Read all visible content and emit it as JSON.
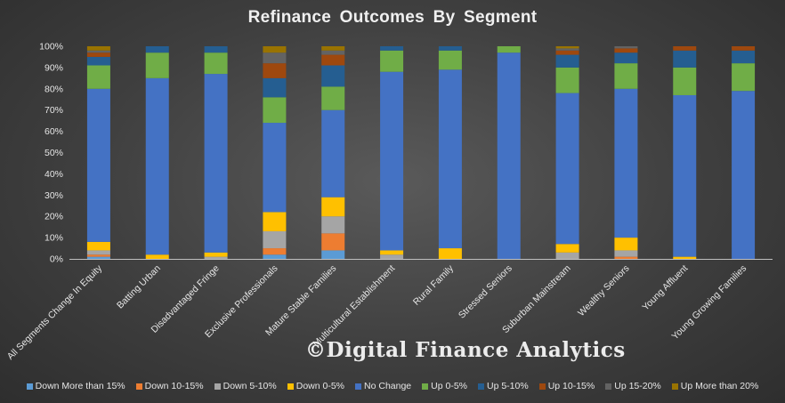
{
  "chart_data": {
    "type": "bar",
    "stacked": true,
    "title": "Refinance Outcomes By Segment",
    "ylim": [
      0,
      100
    ],
    "yticks": [
      "0%",
      "10%",
      "20%",
      "30%",
      "40%",
      "50%",
      "60%",
      "70%",
      "80%",
      "90%",
      "100%"
    ],
    "grid": false,
    "legend_position": "bottom",
    "categories": [
      "All Segments Change In Equity",
      "Batting Urban",
      "Disadvantaged Fringe",
      "Exclusive Professionals",
      "Mature Stable Families",
      "Multicultural Establishment",
      "Rural Family",
      "Stressed Seniors",
      "Suburban Mainstream",
      "Wealthy Seniors",
      "Young Affluent",
      "Young Growing Families"
    ],
    "series": [
      {
        "name": "Down More than 15%",
        "color": "#5b9bd5",
        "values": [
          1,
          0,
          0,
          2,
          4,
          0,
          0,
          0,
          0,
          0,
          0,
          0
        ]
      },
      {
        "name": "Down 10-15%",
        "color": "#ed7d31",
        "values": [
          1,
          0,
          0,
          3,
          8,
          0,
          0,
          0,
          0,
          1,
          0,
          0
        ]
      },
      {
        "name": "Down 5-10%",
        "color": "#a5a5a5",
        "values": [
          2,
          0,
          1,
          8,
          8,
          2,
          0,
          0,
          3,
          3,
          0,
          0
        ]
      },
      {
        "name": "Down 0-5%",
        "color": "#ffc000",
        "values": [
          4,
          2,
          2,
          9,
          9,
          2,
          5,
          0,
          4,
          6,
          1,
          0
        ]
      },
      {
        "name": "No Change",
        "color": "#4472c4",
        "values": [
          72,
          83,
          84,
          42,
          41,
          84,
          84,
          97,
          71,
          70,
          76,
          79
        ]
      },
      {
        "name": "Up 0-5%",
        "color": "#70ad47",
        "values": [
          11,
          12,
          10,
          12,
          11,
          10,
          9,
          3,
          12,
          12,
          13,
          13
        ]
      },
      {
        "name": "Up 5-10%",
        "color": "#255e91",
        "values": [
          4,
          3,
          3,
          9,
          10,
          2,
          2,
          0,
          6,
          5,
          8,
          6
        ]
      },
      {
        "name": "Up 10-15%",
        "color": "#9e480e",
        "values": [
          2,
          0,
          0,
          7,
          5,
          0,
          0,
          0,
          2,
          2,
          2,
          2
        ]
      },
      {
        "name": "Up 15-20%",
        "color": "#636363",
        "values": [
          1,
          0,
          0,
          5,
          2,
          0,
          0,
          0,
          1,
          1,
          0,
          0
        ]
      },
      {
        "name": "Up More than 20%",
        "color": "#997300",
        "values": [
          2,
          0,
          0,
          3,
          2,
          0,
          0,
          0,
          1,
          0,
          0,
          0
        ]
      }
    ]
  },
  "watermark": "©Digital Finance Analytics"
}
